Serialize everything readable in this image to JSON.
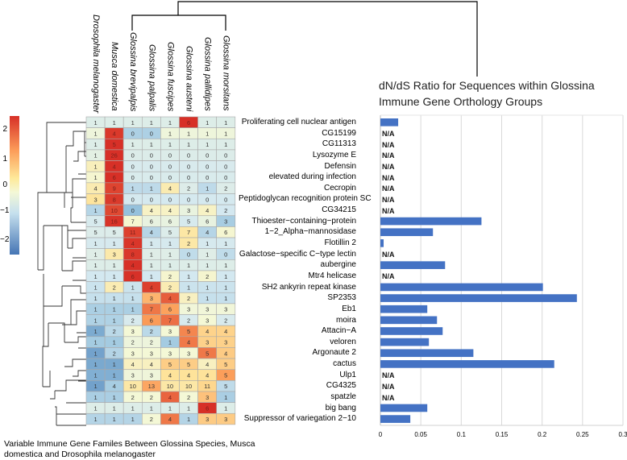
{
  "heatmap": {
    "columns": [
      "Drosophila melanogaster",
      "Musca domestica",
      "Glossina brevipalpis",
      "Glossina palpalis",
      "Glossina fuscipes",
      "Glossina austeni",
      "Glossina pallidipes",
      "Glossina morsitans"
    ],
    "colorbar_ticks": [
      "2",
      "1",
      "0",
      "−1",
      "−2"
    ],
    "colors": {
      "low": "#4575b4",
      "mid": "#f4f8d6",
      "high": "#d73027"
    }
  },
  "rows": [
    {
      "gene": "Proliferating cell nuclear antigen",
      "counts": [
        1,
        1,
        1,
        1,
        1,
        6,
        1,
        1
      ],
      "dnds": 0.022
    },
    {
      "gene": "CG15199",
      "counts": [
        1,
        4,
        0,
        0,
        1,
        1,
        1,
        1
      ],
      "dnds": null
    },
    {
      "gene": "CG11313",
      "counts": [
        1,
        5,
        1,
        1,
        1,
        1,
        1,
        1
      ],
      "dnds": null
    },
    {
      "gene": "Lysozyme E",
      "counts": [
        1,
        26,
        0,
        0,
        0,
        0,
        0,
        0
      ],
      "dnds": null
    },
    {
      "gene": "Defensin",
      "counts": [
        1,
        4,
        0,
        0,
        0,
        0,
        0,
        0
      ],
      "dnds": null
    },
    {
      "gene": "elevated during infection",
      "counts": [
        1,
        6,
        0,
        0,
        0,
        0,
        0,
        0
      ],
      "dnds": null
    },
    {
      "gene": "Cecropin",
      "counts": [
        4,
        9,
        1,
        1,
        4,
        2,
        1,
        2
      ],
      "dnds": null
    },
    {
      "gene": "Peptidoglycan recognition protein SC",
      "counts": [
        3,
        8,
        0,
        0,
        0,
        0,
        0,
        0
      ],
      "dnds": null
    },
    {
      "gene": "CG34215",
      "counts": [
        1,
        10,
        0,
        4,
        4,
        3,
        4,
        2
      ],
      "dnds": null
    },
    {
      "gene": "Thioester−containing−protein",
      "counts": [
        5,
        16,
        7,
        6,
        6,
        5,
        6,
        3
      ],
      "dnds": 0.125
    },
    {
      "gene": "1−2_Alpha−mannosidase",
      "counts": [
        5,
        5,
        11,
        4,
        5,
        7,
        4,
        6
      ],
      "dnds": 0.065
    },
    {
      "gene": "Flotillin 2",
      "counts": [
        1,
        1,
        4,
        1,
        1,
        2,
        1,
        1
      ],
      "dnds": 0.004
    },
    {
      "gene": "Galactose−specific C−type lectin",
      "counts": [
        1,
        3,
        8,
        1,
        1,
        0,
        1,
        0
      ],
      "dnds": null
    },
    {
      "gene": "aubergine",
      "counts": [
        1,
        1,
        4,
        1,
        1,
        1,
        1,
        1
      ],
      "dnds": 0.08
    },
    {
      "gene": "Mtr4 helicase",
      "counts": [
        1,
        1,
        6,
        1,
        2,
        1,
        2,
        1
      ],
      "dnds": null
    },
    {
      "gene": "SH2 ankyrin repeat kinase",
      "counts": [
        1,
        2,
        1,
        4,
        2,
        1,
        1,
        1
      ],
      "dnds": 0.201
    },
    {
      "gene": "SP2353",
      "counts": [
        1,
        1,
        1,
        3,
        4,
        2,
        1,
        1
      ],
      "dnds": 0.243
    },
    {
      "gene": "Eb1",
      "counts": [
        1,
        1,
        1,
        7,
        6,
        3,
        3,
        3
      ],
      "dnds": 0.058
    },
    {
      "gene": "moira",
      "counts": [
        1,
        1,
        2,
        6,
        7,
        2,
        3,
        2
      ],
      "dnds": 0.07
    },
    {
      "gene": "Attacin−A",
      "counts": [
        1,
        2,
        3,
        2,
        3,
        5,
        4,
        4
      ],
      "dnds": 0.077
    },
    {
      "gene": "veloren",
      "counts": [
        1,
        1,
        2,
        2,
        1,
        4,
        3,
        3
      ],
      "dnds": 0.06
    },
    {
      "gene": "Argonaute 2",
      "counts": [
        1,
        2,
        3,
        3,
        3,
        3,
        5,
        4
      ],
      "dnds": 0.115
    },
    {
      "gene": "cactus",
      "counts": [
        1,
        1,
        4,
        4,
        5,
        5,
        4,
        5
      ],
      "dnds": 0.215
    },
    {
      "gene": "Ulp1",
      "counts": [
        1,
        1,
        3,
        3,
        4,
        4,
        4,
        5
      ],
      "dnds": null
    },
    {
      "gene": "CG4325",
      "counts": [
        1,
        4,
        10,
        13,
        10,
        10,
        11,
        5
      ],
      "dnds": null
    },
    {
      "gene": "spatzle",
      "counts": [
        1,
        1,
        2,
        2,
        4,
        2,
        3,
        1
      ],
      "dnds": null
    },
    {
      "gene": "big bang",
      "counts": [
        1,
        1,
        1,
        1,
        1,
        1,
        6,
        1
      ],
      "dnds": 0.058
    },
    {
      "gene": "Suppressor of variegation 2−10",
      "counts": [
        1,
        1,
        1,
        2,
        4,
        1,
        3,
        3
      ],
      "dnds": 0.037
    }
  ],
  "chart_data": {
    "type": "bar",
    "orientation": "horizontal",
    "title": "dN/dS Ratio for Sequences within Glossina Immune Gene Orthology Groups",
    "title_lines": [
      "dN/dS Ratio for Sequences within Glossina",
      "Immune Gene Orthology Groups"
    ],
    "missing_label": "N/A",
    "xlim": [
      0,
      0.3
    ],
    "xticks": [
      "0",
      "0.05",
      "0.1",
      "0.15",
      "0.2",
      "0.25",
      "0.3"
    ],
    "grid": true,
    "bar_color": "#4472c4"
  },
  "caption": {
    "line1": "Variable Immune Gene Familes Between Glossina Species, Musca",
    "line2": "domestica and Drosophila melanogaster"
  }
}
